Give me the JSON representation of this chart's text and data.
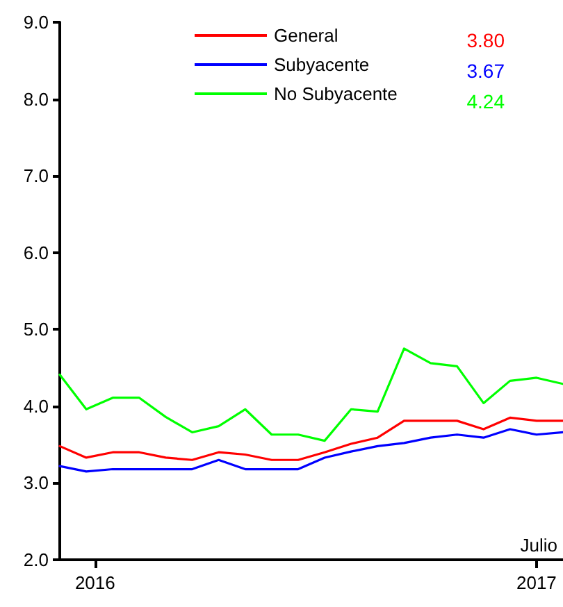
{
  "chart_data": {
    "type": "line",
    "x": [
      2015.92,
      2015.98,
      2016.04,
      2016.1,
      2016.16,
      2016.22,
      2016.28,
      2016.34,
      2016.4,
      2016.46,
      2016.52,
      2016.58,
      2016.64,
      2016.7,
      2016.76,
      2016.82,
      2016.88,
      2016.94,
      2017.0,
      2017.06
    ],
    "series": [
      {
        "name": "General",
        "color": "#ff0000",
        "values": [
          3.48,
          3.33,
          3.4,
          3.4,
          3.33,
          3.3,
          3.4,
          3.37,
          3.3,
          3.3,
          3.4,
          3.51,
          3.59,
          3.81,
          3.81,
          3.81,
          3.7,
          3.85,
          3.81,
          3.81
        ]
      },
      {
        "name": "Subyacente",
        "color": "#0000ff",
        "values": [
          3.22,
          3.15,
          3.18,
          3.18,
          3.18,
          3.18,
          3.3,
          3.18,
          3.18,
          3.18,
          3.33,
          3.41,
          3.48,
          3.52,
          3.59,
          3.63,
          3.59,
          3.7,
          3.63,
          3.66
        ]
      },
      {
        "name": "No Subyacente",
        "color": "#00ff00",
        "values": [
          4.41,
          3.96,
          4.11,
          4.11,
          3.86,
          3.66,
          3.74,
          3.96,
          3.63,
          3.63,
          3.55,
          3.96,
          3.93,
          4.75,
          4.56,
          4.52,
          4.04,
          4.33,
          4.37,
          4.29
        ]
      }
    ],
    "annotations": [
      "3.80",
      "3.67",
      "4.24",
      "Julio"
    ],
    "xlim": [
      2015.92,
      2017.06
    ],
    "xticks": [
      2016,
      2017
    ],
    "ylim": [
      2.0,
      9.0
    ],
    "yticks": [
      {
        "value": 2,
        "label": "2.0"
      },
      {
        "value": 3,
        "label": "3.0"
      },
      {
        "value": 4,
        "label": "4.0"
      },
      {
        "value": 5,
        "label": "5.0"
      },
      {
        "value": 6,
        "label": "6.0"
      },
      {
        "value": 7,
        "label": "7.0"
      },
      {
        "value": 8,
        "label": "8.0"
      },
      {
        "value": 9,
        "label": "9.0"
      }
    ],
    "grid": false,
    "legend": "top",
    "marker": "none",
    "line_style": "solid"
  }
}
